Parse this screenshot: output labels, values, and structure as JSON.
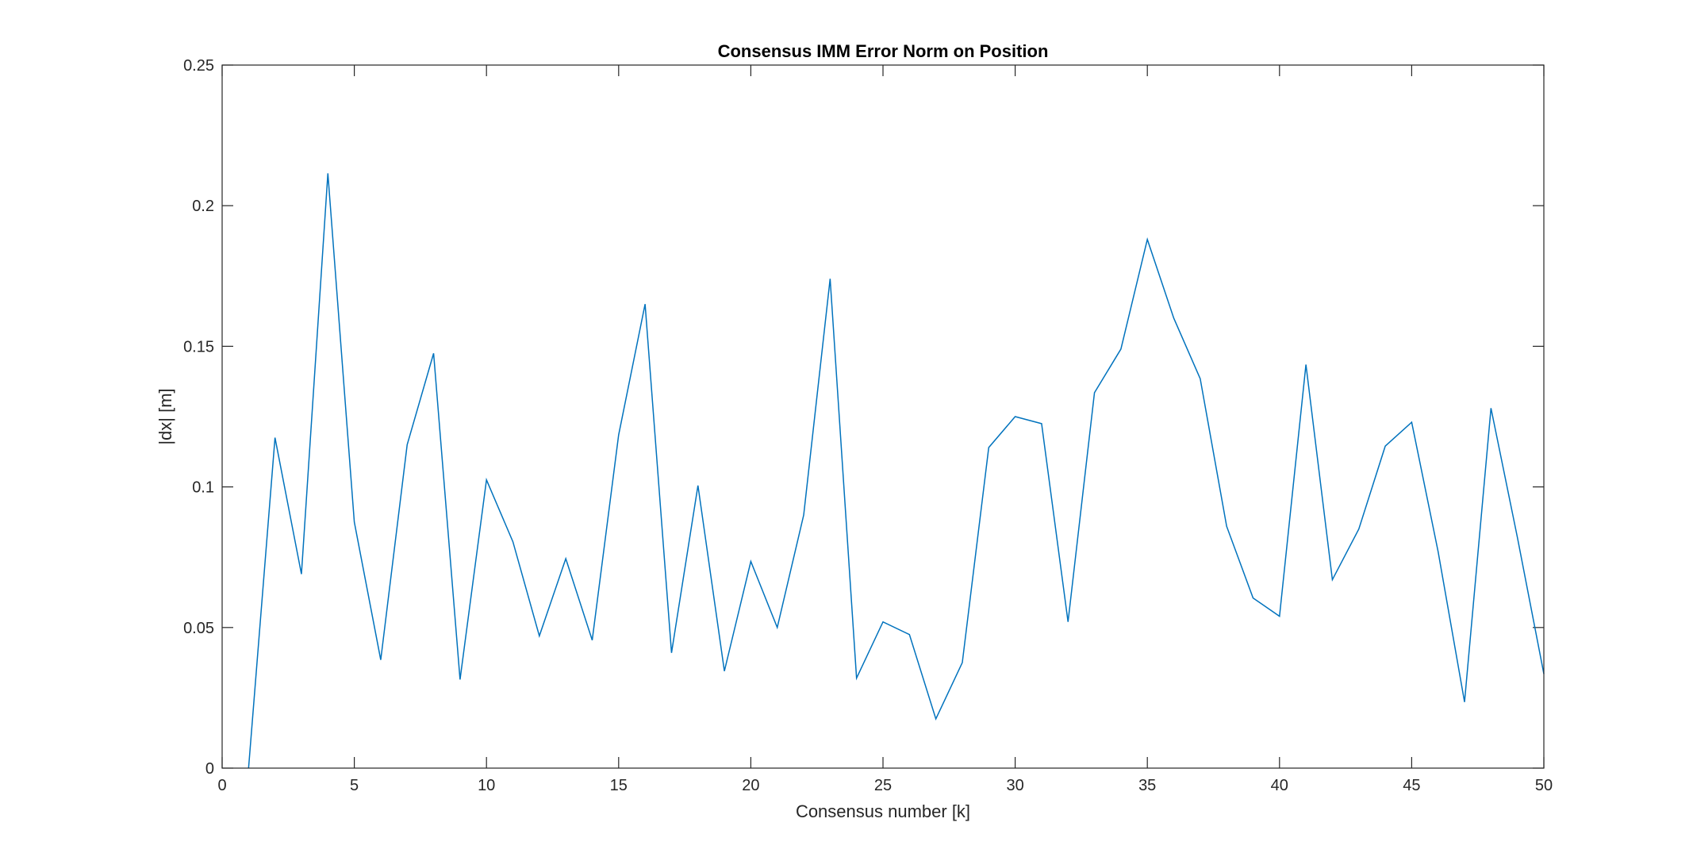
{
  "chart_data": {
    "type": "line",
    "title": "Consensus IMM Error Norm on Position",
    "xlabel": "Consensus number [k]",
    "ylabel": "|dx| [m]",
    "xlim": [
      0,
      50
    ],
    "ylim": [
      0,
      0.25
    ],
    "xticks": [
      0,
      5,
      10,
      15,
      20,
      25,
      30,
      35,
      40,
      45,
      50
    ],
    "yticks": [
      0,
      0.05,
      0.1,
      0.15,
      0.2,
      0.25
    ],
    "xtick_labels": [
      "0",
      "5",
      "10",
      "15",
      "20",
      "25",
      "30",
      "35",
      "40",
      "45",
      "50"
    ],
    "ytick_labels": [
      "0",
      "0.05",
      "0.1",
      "0.15",
      "0.2",
      "0.25"
    ],
    "grid": false,
    "box": true,
    "series": [
      {
        "color": "#0072BD",
        "x": [
          1,
          2,
          3,
          4,
          5,
          6,
          7,
          8,
          9,
          10,
          11,
          12,
          13,
          14,
          15,
          16,
          17,
          18,
          19,
          20,
          21,
          22,
          23,
          24,
          25,
          26,
          27,
          28,
          29,
          30,
          31,
          32,
          33,
          34,
          35,
          36,
          37,
          38,
          39,
          40,
          41,
          42,
          43,
          44,
          45,
          46,
          47,
          48,
          49,
          50
        ],
        "y": [
          0.0,
          0.1175,
          0.069,
          0.2115,
          0.0875,
          0.0385,
          0.115,
          0.1475,
          0.0315,
          0.1025,
          0.0805,
          0.047,
          0.0745,
          0.0455,
          0.1185,
          0.165,
          0.041,
          0.1005,
          0.0345,
          0.0735,
          0.05,
          0.09,
          0.174,
          0.032,
          0.052,
          0.0475,
          0.0175,
          0.0375,
          0.114,
          0.125,
          0.1225,
          0.052,
          0.1335,
          0.149,
          0.188,
          0.16,
          0.1385,
          0.086,
          0.0605,
          0.054,
          0.1435,
          0.067,
          0.085,
          0.1145,
          0.123,
          0.077,
          0.0235,
          0.128,
          0.082,
          0.0335
        ]
      }
    ]
  }
}
